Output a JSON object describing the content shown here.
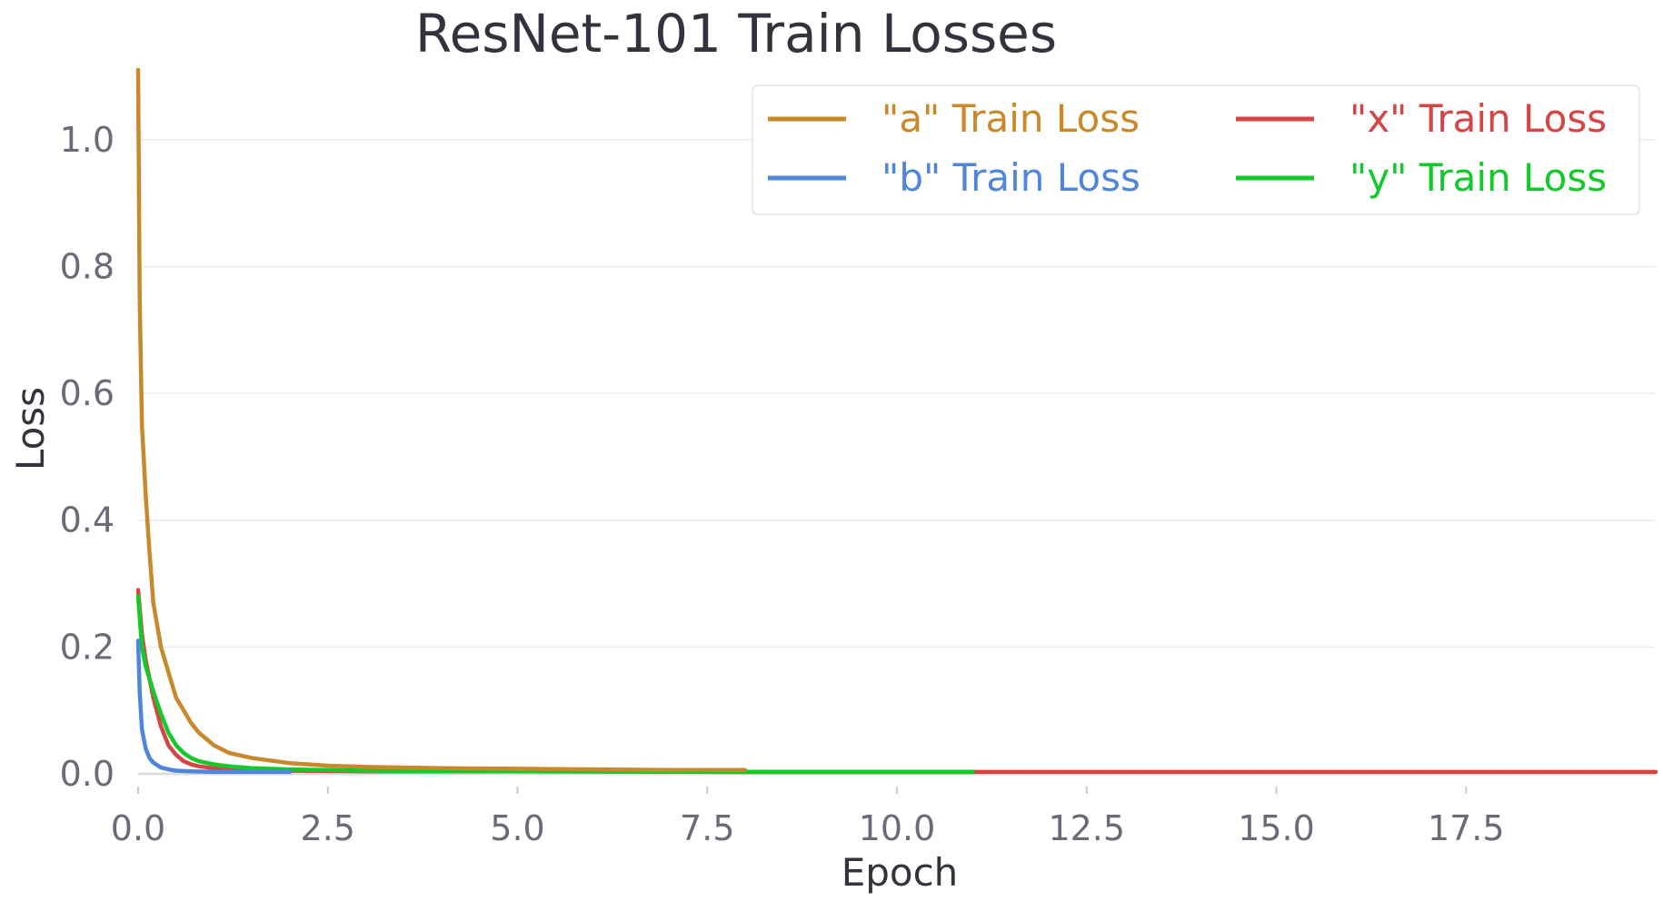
{
  "chart_data": {
    "type": "line",
    "title": "ResNet-101 Train Losses",
    "xlabel": "Epoch",
    "ylabel": "Loss",
    "xlim": [
      0.0,
      20.0
    ],
    "ylim": [
      -0.02,
      1.12
    ],
    "xticks": [
      0.0,
      2.5,
      5.0,
      7.5,
      10.0,
      12.5,
      15.0,
      17.5
    ],
    "xtick_labels": [
      "0.0",
      "2.5",
      "5.0",
      "7.5",
      "10.0",
      "12.5",
      "15.0",
      "17.5"
    ],
    "yticks": [
      0.0,
      0.2,
      0.4,
      0.6,
      0.8,
      1.0
    ],
    "ytick_labels": [
      "0.0",
      "0.2",
      "0.4",
      "0.6",
      "0.8",
      "1.0"
    ],
    "grid": "horizontal",
    "legend_position": "top-right",
    "series": [
      {
        "name": "\"a\" Train Loss",
        "color": "#c8892a",
        "x": [
          0.0,
          0.02,
          0.05,
          0.1,
          0.15,
          0.2,
          0.3,
          0.4,
          0.5,
          0.6,
          0.7,
          0.8,
          1.0,
          1.2,
          1.5,
          2.0,
          2.5,
          3.0,
          4.0,
          5.0,
          6.0,
          7.0,
          8.0
        ],
        "y": [
          1.11,
          0.75,
          0.55,
          0.44,
          0.35,
          0.27,
          0.2,
          0.16,
          0.12,
          0.1,
          0.08,
          0.065,
          0.045,
          0.033,
          0.025,
          0.017,
          0.013,
          0.011,
          0.009,
          0.008,
          0.007,
          0.006,
          0.006
        ]
      },
      {
        "name": "\"b\" Train Loss",
        "color": "#4f86d9",
        "x": [
          0.0,
          0.02,
          0.05,
          0.1,
          0.15,
          0.2,
          0.3,
          0.4,
          0.5,
          0.7,
          1.0,
          1.5,
          2.0
        ],
        "y": [
          0.21,
          0.13,
          0.07,
          0.04,
          0.025,
          0.018,
          0.01,
          0.007,
          0.005,
          0.004,
          0.003,
          0.003,
          0.003
        ]
      },
      {
        "name": "\"x\" Train Loss",
        "color": "#d64545",
        "x": [
          0.0,
          0.05,
          0.1,
          0.2,
          0.3,
          0.4,
          0.5,
          0.6,
          0.7,
          0.8,
          1.0,
          1.2,
          1.5,
          2.0,
          3.0,
          5.0,
          8.0,
          11.0,
          15.0,
          20.0
        ],
        "y": [
          0.29,
          0.22,
          0.18,
          0.12,
          0.075,
          0.045,
          0.03,
          0.02,
          0.015,
          0.012,
          0.009,
          0.007,
          0.006,
          0.005,
          0.004,
          0.004,
          0.003,
          0.003,
          0.003,
          0.003
        ]
      },
      {
        "name": "\"y\" Train Loss",
        "color": "#14c92a",
        "x": [
          0.0,
          0.05,
          0.1,
          0.2,
          0.3,
          0.4,
          0.5,
          0.6,
          0.7,
          0.8,
          1.0,
          1.2,
          1.5,
          2.0,
          3.0,
          5.0,
          8.0,
          11.0
        ],
        "y": [
          0.28,
          0.2,
          0.17,
          0.13,
          0.095,
          0.065,
          0.045,
          0.033,
          0.025,
          0.02,
          0.015,
          0.012,
          0.009,
          0.007,
          0.005,
          0.004,
          0.003,
          0.003
        ]
      }
    ],
    "legend": [
      {
        "series": 0,
        "label": "\"a\" Train Loss",
        "color": "#c8892a"
      },
      {
        "series": 2,
        "label": "\"x\" Train Loss",
        "color": "#d64545"
      },
      {
        "series": 1,
        "label": "\"b\" Train Loss",
        "color": "#4f86d9"
      },
      {
        "series": 3,
        "label": "\"y\" Train Loss",
        "color": "#14c92a"
      }
    ]
  }
}
